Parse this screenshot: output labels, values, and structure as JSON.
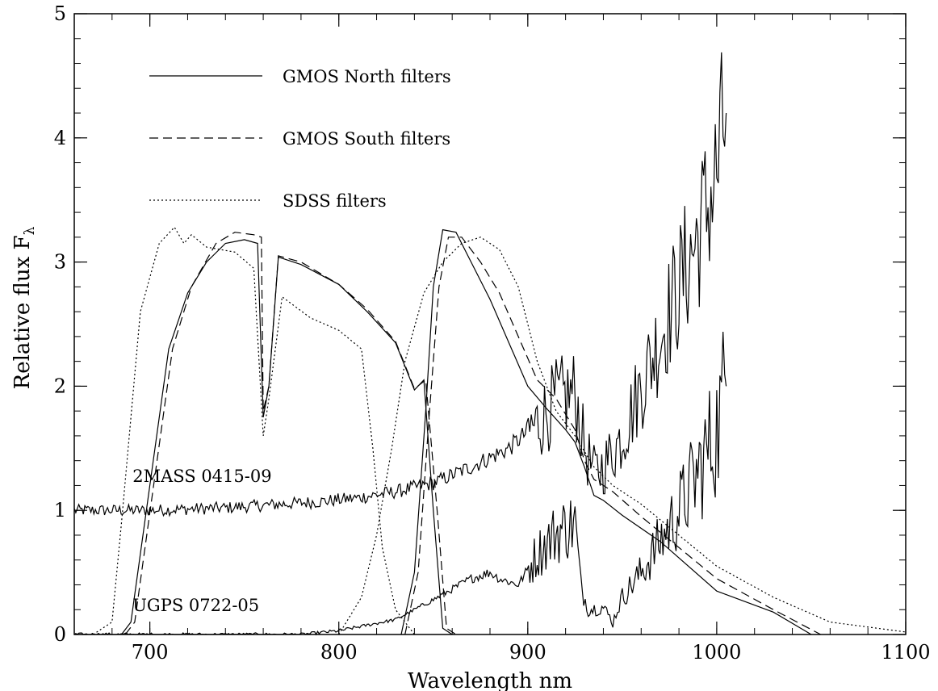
{
  "chart_data": {
    "type": "line",
    "title": "",
    "xlabel": "Wavelength nm",
    "ylabel": "Relative flux F",
    "ylabel_subscript": "λ",
    "xlim": [
      660,
      1100
    ],
    "ylim": [
      0,
      5
    ],
    "xticks": [
      700,
      800,
      900,
      1000,
      1100
    ],
    "yticks": [
      0,
      1,
      2,
      3,
      4,
      5
    ],
    "x_minor_step": 20,
    "y_minor_step": 0.2,
    "grid": false,
    "legend": {
      "placement": "top-left",
      "entries": [
        {
          "label": "GMOS North filters",
          "style": "solid"
        },
        {
          "label": "GMOS South filters",
          "style": "dashed"
        },
        {
          "label": "SDSS filters",
          "style": "dotted"
        }
      ]
    },
    "annotations": [
      {
        "text": "2MASS 0415-09",
        "x": 690,
        "y": 1.28
      },
      {
        "text": "UGPS 0722-05",
        "x": 690,
        "y": 0.24
      }
    ],
    "series": [
      {
        "style": "solid",
        "noise": 0,
        "points": [
          [
            685,
            0
          ],
          [
            690,
            0.1
          ],
          [
            700,
            1.2
          ],
          [
            710,
            2.3
          ],
          [
            720,
            2.75
          ],
          [
            730,
            3.0
          ],
          [
            740,
            3.15
          ],
          [
            750,
            3.18
          ],
          [
            757,
            3.15
          ],
          [
            760,
            1.75
          ],
          [
            763,
            2.0
          ],
          [
            768,
            3.04
          ],
          [
            780,
            2.98
          ],
          [
            800,
            2.82
          ],
          [
            815,
            2.6
          ],
          [
            830,
            2.35
          ],
          [
            840,
            1.97
          ],
          [
            845,
            2.05
          ],
          [
            850,
            1.0
          ],
          [
            855,
            0.05
          ],
          [
            860,
            0
          ]
        ]
      },
      {
        "style": "dashed",
        "noise": 0,
        "points": [
          [
            687,
            0
          ],
          [
            692,
            0.1
          ],
          [
            702,
            1.2
          ],
          [
            712,
            2.3
          ],
          [
            722,
            2.8
          ],
          [
            735,
            3.15
          ],
          [
            745,
            3.24
          ],
          [
            755,
            3.22
          ],
          [
            759,
            3.2
          ],
          [
            760,
            1.8
          ],
          [
            763,
            2.0
          ],
          [
            768,
            3.05
          ],
          [
            780,
            3.0
          ],
          [
            800,
            2.82
          ],
          [
            815,
            2.62
          ],
          [
            830,
            2.36
          ],
          [
            840,
            1.98
          ],
          [
            846,
            2.05
          ],
          [
            852,
            1.0
          ],
          [
            857,
            0.05
          ],
          [
            862,
            0
          ]
        ]
      },
      {
        "style": "dotted",
        "noise": 0,
        "points": [
          [
            670,
            0
          ],
          [
            680,
            0.1
          ],
          [
            685,
            0.9
          ],
          [
            695,
            2.6
          ],
          [
            705,
            3.15
          ],
          [
            713,
            3.28
          ],
          [
            718,
            3.15
          ],
          [
            722,
            3.22
          ],
          [
            730,
            3.12
          ],
          [
            745,
            3.08
          ],
          [
            755,
            2.95
          ],
          [
            760,
            1.6
          ],
          [
            763,
            1.9
          ],
          [
            770,
            2.72
          ],
          [
            785,
            2.55
          ],
          [
            800,
            2.45
          ],
          [
            812,
            2.3
          ],
          [
            818,
            1.5
          ],
          [
            823,
            0.7
          ],
          [
            830,
            0.2
          ],
          [
            840,
            0
          ]
        ]
      },
      {
        "style": "solid",
        "noise": 0,
        "points": [
          [
            833,
            0
          ],
          [
            840,
            0.5
          ],
          [
            846,
            1.8
          ],
          [
            850,
            2.8
          ],
          [
            855,
            3.26
          ],
          [
            862,
            3.24
          ],
          [
            870,
            3.0
          ],
          [
            880,
            2.7
          ],
          [
            890,
            2.35
          ],
          [
            900,
            2.0
          ],
          [
            910,
            1.82
          ],
          [
            920,
            1.65
          ],
          [
            925,
            1.55
          ],
          [
            930,
            1.35
          ],
          [
            935,
            1.12
          ],
          [
            940,
            1.08
          ],
          [
            950,
            0.96
          ],
          [
            970,
            0.75
          ],
          [
            1000,
            0.35
          ],
          [
            1030,
            0.18
          ],
          [
            1050,
            0
          ]
        ]
      },
      {
        "style": "dashed",
        "noise": 0,
        "points": [
          [
            835,
            0
          ],
          [
            842,
            0.5
          ],
          [
            848,
            1.8
          ],
          [
            853,
            2.8
          ],
          [
            858,
            3.2
          ],
          [
            865,
            3.2
          ],
          [
            875,
            3.0
          ],
          [
            885,
            2.75
          ],
          [
            895,
            2.4
          ],
          [
            905,
            2.05
          ],
          [
            915,
            1.9
          ],
          [
            925,
            1.65
          ],
          [
            930,
            1.4
          ],
          [
            935,
            1.25
          ],
          [
            945,
            1.15
          ],
          [
            960,
            0.95
          ],
          [
            980,
            0.7
          ],
          [
            1000,
            0.45
          ],
          [
            1030,
            0.2
          ],
          [
            1055,
            0
          ]
        ]
      },
      {
        "style": "dotted",
        "noise": 0,
        "points": [
          [
            800,
            0
          ],
          [
            812,
            0.3
          ],
          [
            820,
            0.8
          ],
          [
            828,
            1.5
          ],
          [
            835,
            2.2
          ],
          [
            845,
            2.75
          ],
          [
            855,
            3.0
          ],
          [
            865,
            3.15
          ],
          [
            875,
            3.2
          ],
          [
            885,
            3.1
          ],
          [
            895,
            2.8
          ],
          [
            905,
            2.2
          ],
          [
            915,
            1.8
          ],
          [
            925,
            1.6
          ],
          [
            935,
            1.35
          ],
          [
            945,
            1.2
          ],
          [
            960,
            1.05
          ],
          [
            980,
            0.8
          ],
          [
            1000,
            0.55
          ],
          [
            1030,
            0.3
          ],
          [
            1060,
            0.1
          ],
          [
            1100,
            0.02
          ]
        ]
      },
      {
        "style": "solid",
        "noise": 0.08,
        "points": [
          [
            660,
            1.0
          ],
          [
            700,
            1.0
          ],
          [
            740,
            1.02
          ],
          [
            760,
            1.04
          ],
          [
            770,
            1.05
          ],
          [
            790,
            1.07
          ],
          [
            810,
            1.1
          ],
          [
            830,
            1.15
          ],
          [
            850,
            1.22
          ],
          [
            870,
            1.35
          ],
          [
            890,
            1.5
          ],
          [
            905,
            1.7
          ],
          [
            915,
            1.88
          ],
          [
            925,
            1.95
          ],
          [
            930,
            1.5
          ],
          [
            935,
            1.3
          ],
          [
            940,
            1.35
          ],
          [
            950,
            1.6
          ],
          [
            960,
            2.0
          ],
          [
            970,
            2.4
          ],
          [
            980,
            2.8
          ],
          [
            990,
            3.2
          ],
          [
            1000,
            3.7
          ],
          [
            1005,
            4.2
          ]
        ]
      },
      {
        "style": "solid",
        "noise": 0.15,
        "points": [
          [
            660,
            0
          ],
          [
            780,
            0
          ],
          [
            800,
            0.03
          ],
          [
            830,
            0.12
          ],
          [
            850,
            0.28
          ],
          [
            870,
            0.45
          ],
          [
            880,
            0.5
          ],
          [
            885,
            0.45
          ],
          [
            895,
            0.4
          ],
          [
            905,
            0.65
          ],
          [
            915,
            0.82
          ],
          [
            925,
            0.9
          ],
          [
            928,
            0.4
          ],
          [
            932,
            0.2
          ],
          [
            940,
            0.22
          ],
          [
            945,
            0.1
          ],
          [
            950,
            0.3
          ],
          [
            960,
            0.5
          ],
          [
            970,
            0.75
          ],
          [
            980,
            1.0
          ],
          [
            990,
            1.3
          ],
          [
            1000,
            1.65
          ],
          [
            1005,
            2.0
          ]
        ]
      }
    ]
  }
}
